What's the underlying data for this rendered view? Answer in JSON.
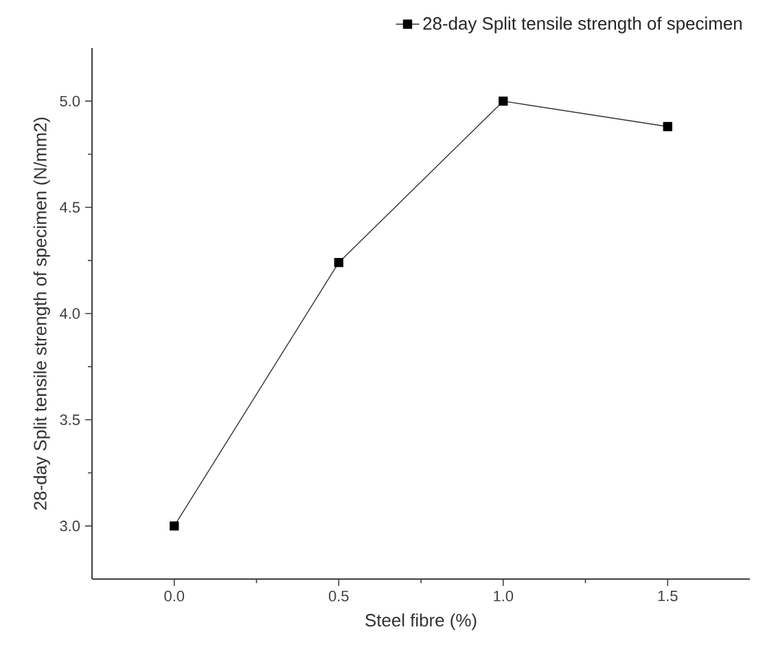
{
  "chart_data": {
    "type": "line",
    "xlabel": "Steel fibre (%)",
    "ylabel": "28-day Split tensile strength of specimen (N/mm2)",
    "x": [
      0,
      0.5,
      1.0,
      1.5
    ],
    "series": [
      {
        "name": "28-day Split tensile strength of specimen",
        "color": "#333333",
        "values": [
          3.0,
          4.24,
          5.0,
          4.88
        ]
      }
    ],
    "xlim": [
      -0.25,
      1.75
    ],
    "ylim": [
      2.75,
      5.25
    ],
    "xticks": [
      {
        "value": 0,
        "label": "0.0"
      },
      {
        "value": 0.5,
        "label": "0.5"
      },
      {
        "value": 1,
        "label": "1.0"
      },
      {
        "value": 1.5,
        "label": "1.5"
      }
    ],
    "yticks": [
      {
        "value": 3,
        "label": "3.0"
      },
      {
        "value": 3.5,
        "label": "3.5"
      },
      {
        "value": 4,
        "label": "4.0"
      },
      {
        "value": 4.5,
        "label": "4.5"
      },
      {
        "value": 5,
        "label": "5.0"
      }
    ],
    "grid": false,
    "legend": "top right",
    "marker": "square",
    "line_style": "solid"
  }
}
